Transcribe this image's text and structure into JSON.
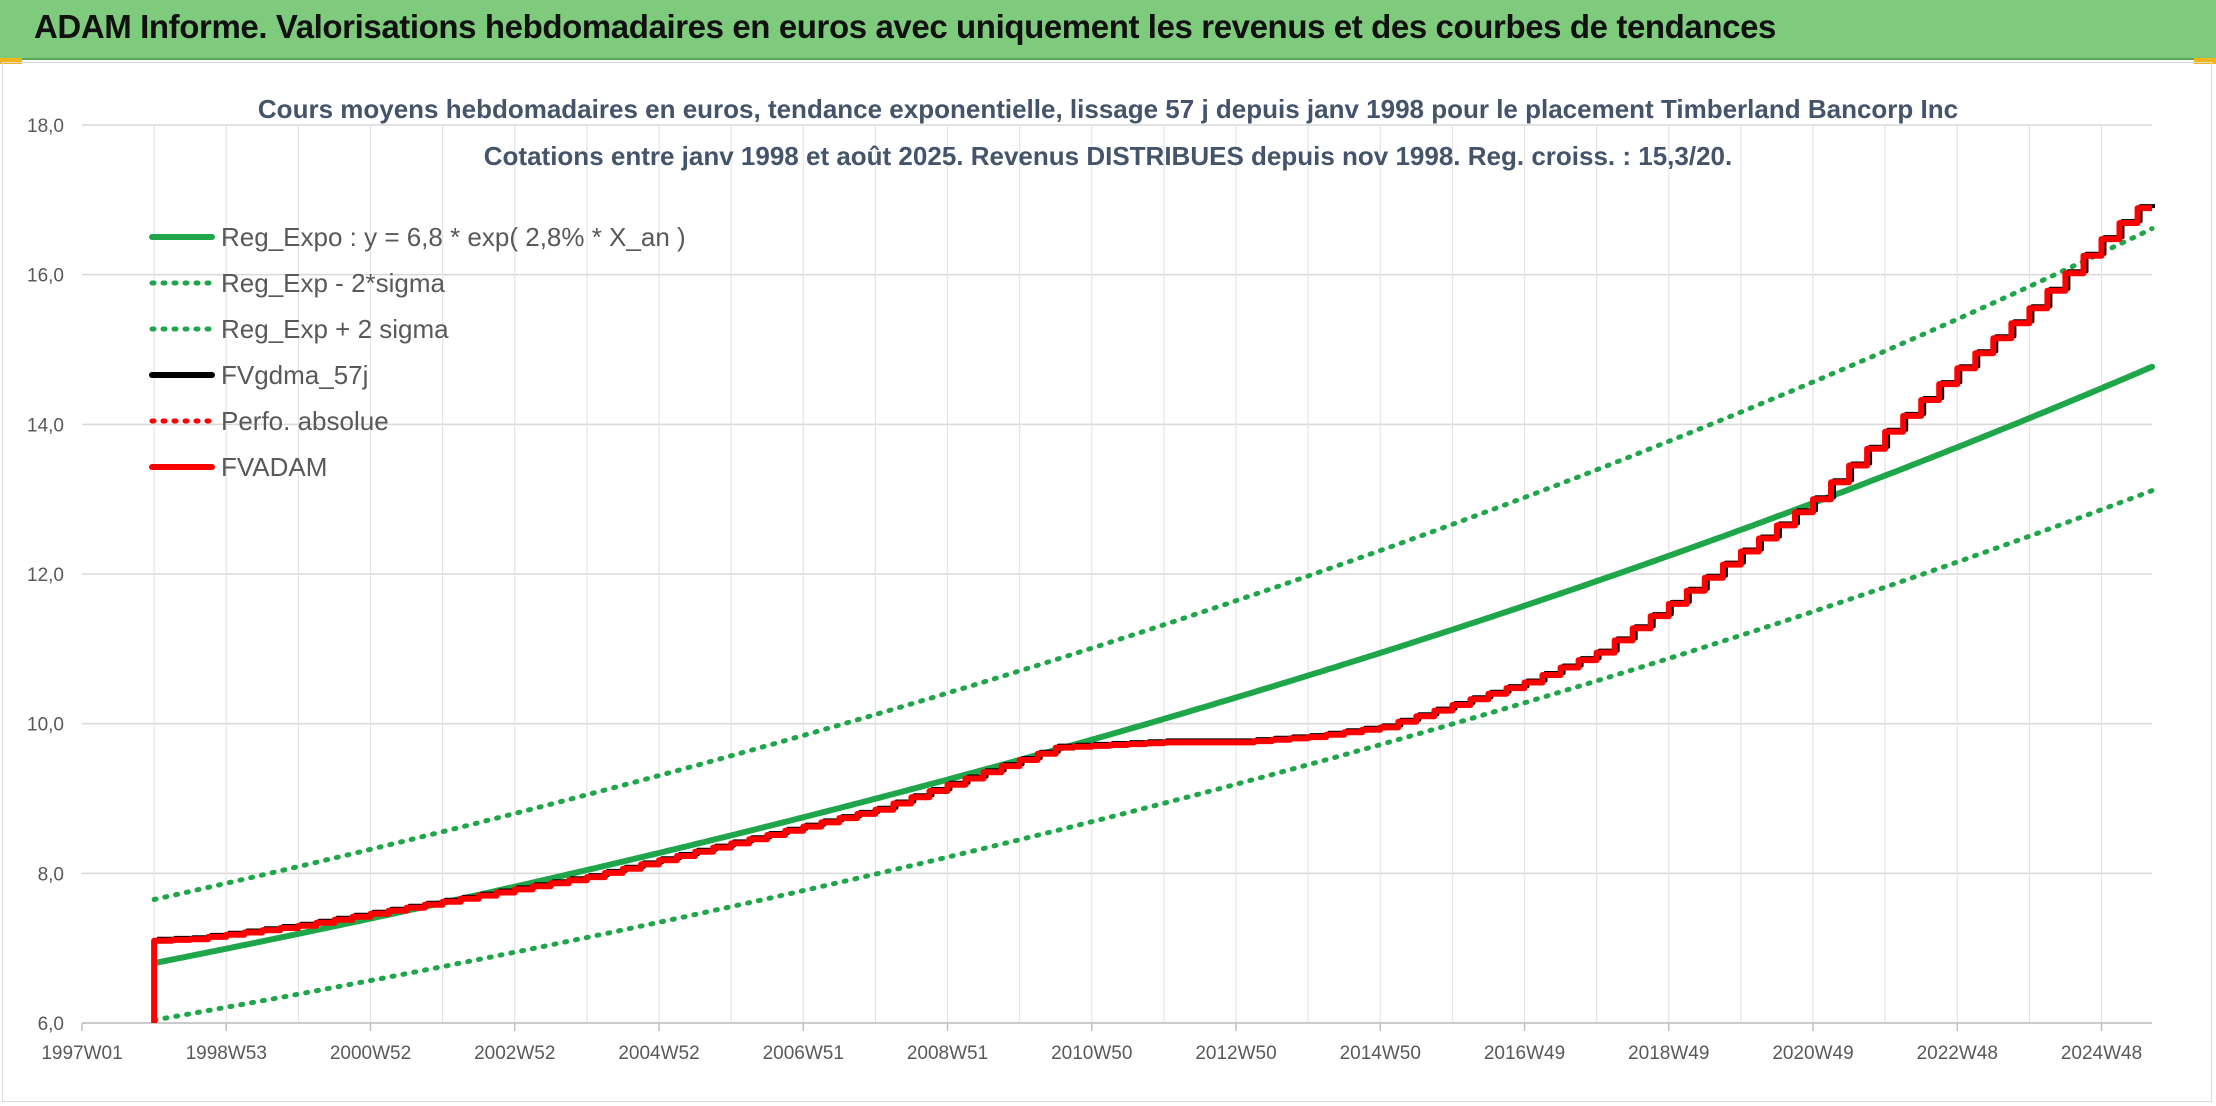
{
  "banner": {
    "title": "ADAM Informe. Valorisations hebdomadaires en euros avec uniquement les revenus et des courbes de tendances",
    "color": "#7ecb7e",
    "accent": "#f2b418"
  },
  "chart_data": {
    "type": "line",
    "title": "Cours moyens hebdomadaires en euros, tendance exponentielle, lissage 57 j depuis janv 1998 pour le placement Timberland Bancorp Inc",
    "subtitle": "Cotations entre janv 1998 et août 2025. Revenus DISTRIBUES depuis nov 1998. Reg. croiss. : 15,3/20.",
    "ylim": [
      6.0,
      18.0
    ],
    "yticks": [
      "6,0",
      "8,0",
      "10,0",
      "12,0",
      "14,0",
      "16,0",
      "18,0"
    ],
    "xlim": [
      1997.0,
      2025.7
    ],
    "xticks": [
      {
        "label": "1997W01",
        "t": 1997.0
      },
      {
        "label": "1998W53",
        "t": 1999.0
      },
      {
        "label": "2000W52",
        "t": 2001.0
      },
      {
        "label": "2002W52",
        "t": 2003.0
      },
      {
        "label": "2004W52",
        "t": 2005.0
      },
      {
        "label": "2006W51",
        "t": 2007.0
      },
      {
        "label": "2008W51",
        "t": 2009.0
      },
      {
        "label": "2010W50",
        "t": 2011.0
      },
      {
        "label": "2012W50",
        "t": 2013.0
      },
      {
        "label": "2014W50",
        "t": 2015.0
      },
      {
        "label": "2016W49",
        "t": 2017.0
      },
      {
        "label": "2018W49",
        "t": 2019.0
      },
      {
        "label": "2020W49",
        "t": 2021.0
      },
      {
        "label": "2022W48",
        "t": 2023.0
      },
      {
        "label": "2024W48",
        "t": 2025.0
      }
    ],
    "grid": true,
    "legend_position": "top-left",
    "series": [
      {
        "name": "Reg_Expo : y = 6,8 * exp( 2,8% *  X_an )",
        "color": "#1fa64a",
        "style": "solid",
        "formula": {
          "a": 6.8,
          "r": 0.028,
          "t0": 1998.0,
          "mult": 1.0
        }
      },
      {
        "name": "Reg_Exp - 2*sigma",
        "color": "#1fa64a",
        "style": "dotted",
        "formula": {
          "a": 6.8,
          "r": 0.028,
          "t0": 1998.0,
          "mult": 0.888
        }
      },
      {
        "name": "Reg_Exp + 2 sigma",
        "color": "#1fa64a",
        "style": "dotted",
        "formula": {
          "a": 6.8,
          "r": 0.028,
          "t0": 1998.0,
          "mult": 1.125
        }
      },
      {
        "name": "FVgdma_57j",
        "color": "#000000",
        "style": "solid",
        "x": [
          1998.0,
          1998.5,
          2000,
          2002,
          2004,
          2006,
          2008,
          2009.5,
          2010.5,
          2012,
          2013,
          2014,
          2015,
          2016,
          2017,
          2018,
          2019,
          2020,
          2021,
          2022,
          2023,
          2024,
          2024.8,
          2025.2,
          2025.7
        ],
        "y": [
          7.1,
          7.12,
          7.3,
          7.62,
          7.95,
          8.4,
          8.85,
          9.35,
          9.68,
          9.75,
          9.75,
          9.82,
          9.95,
          10.25,
          10.55,
          10.95,
          11.6,
          12.3,
          13.0,
          13.9,
          14.75,
          15.55,
          16.3,
          16.65,
          17.05
        ]
      },
      {
        "name": "Perfo. absolue",
        "color": "#ff0000",
        "style": "dotted",
        "x": [
          1998.0,
          1998.5,
          2000,
          2002,
          2004,
          2006,
          2008,
          2009.5,
          2010.5,
          2012,
          2013,
          2014,
          2015,
          2016,
          2017,
          2018,
          2019,
          2020,
          2021,
          2022,
          2023,
          2024,
          2024.8,
          2025.2,
          2025.7
        ],
        "y": [
          7.1,
          7.12,
          7.3,
          7.62,
          7.95,
          8.4,
          8.85,
          9.35,
          9.68,
          9.75,
          9.75,
          9.82,
          9.95,
          10.25,
          10.55,
          10.95,
          11.6,
          12.3,
          13.0,
          13.9,
          14.75,
          15.55,
          16.3,
          16.65,
          17.05
        ]
      },
      {
        "name": "FVADAM",
        "color": "#ff0000",
        "style": "solid",
        "x": [
          1998.0,
          1998.5,
          2000,
          2002,
          2004,
          2006,
          2008,
          2009.5,
          2010.5,
          2012,
          2013,
          2014,
          2015,
          2016,
          2017,
          2018,
          2019,
          2020,
          2021,
          2022,
          2023,
          2024,
          2024.8,
          2025.2,
          2025.7
        ],
        "y": [
          7.1,
          7.12,
          7.3,
          7.62,
          7.95,
          8.4,
          8.85,
          9.35,
          9.68,
          9.75,
          9.75,
          9.82,
          9.95,
          10.25,
          10.55,
          10.95,
          11.6,
          12.3,
          13.0,
          13.9,
          14.75,
          15.55,
          16.3,
          16.65,
          17.05
        ]
      }
    ]
  }
}
